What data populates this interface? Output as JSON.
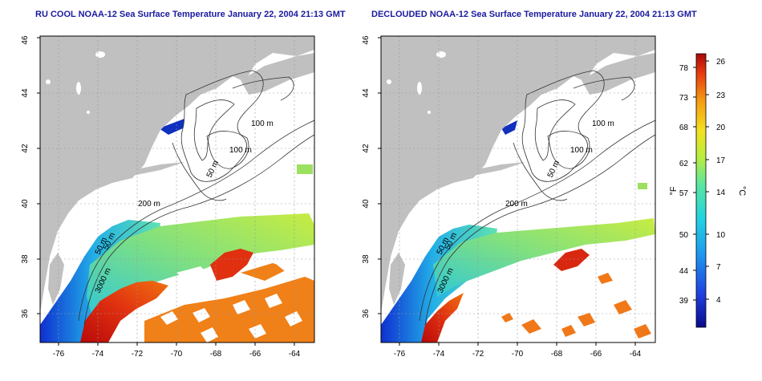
{
  "left_panel": {
    "title": "RU COOL NOAA-12 Sea Surface Temperature January 22, 2004 21:13 GMT",
    "x_ticks": [
      "-76",
      "-74",
      "-72",
      "-70",
      "-68",
      "-66",
      "-64"
    ],
    "y_ticks": [
      "36",
      "38",
      "40",
      "42",
      "44",
      "46"
    ],
    "contour_labels": [
      "100 m",
      "100 m",
      "50 m",
      "200 m",
      "50 m",
      "3000 m",
      "50 m"
    ]
  },
  "right_panel": {
    "title": "DECLOUDED NOAA-12 Sea Surface Temperature January 22, 2004 21:13 GMT",
    "x_ticks": [
      "-76",
      "-74",
      "-72",
      "-70",
      "-68",
      "-66",
      "-64"
    ],
    "y_ticks": [
      "36",
      "38",
      "40",
      "42",
      "44",
      "46"
    ],
    "contour_labels": [
      "100 m",
      "100 m",
      "50 m",
      "200 m",
      "50 m",
      "3000 m",
      "50 m"
    ]
  },
  "colorbar": {
    "fahrenheit_label": "°F",
    "celsius_label": "°C",
    "fahrenheit_ticks": [
      "78",
      "73",
      "68",
      "62",
      "57",
      "50",
      "44",
      "39"
    ],
    "celsius_ticks": [
      "26",
      "23",
      "20",
      "17",
      "14",
      "10",
      "7",
      "4"
    ]
  },
  "colors": {
    "land": "#c0c0c0",
    "ocean": "#ffffff",
    "title": "#1a1aa0",
    "contour": "#333333"
  }
}
